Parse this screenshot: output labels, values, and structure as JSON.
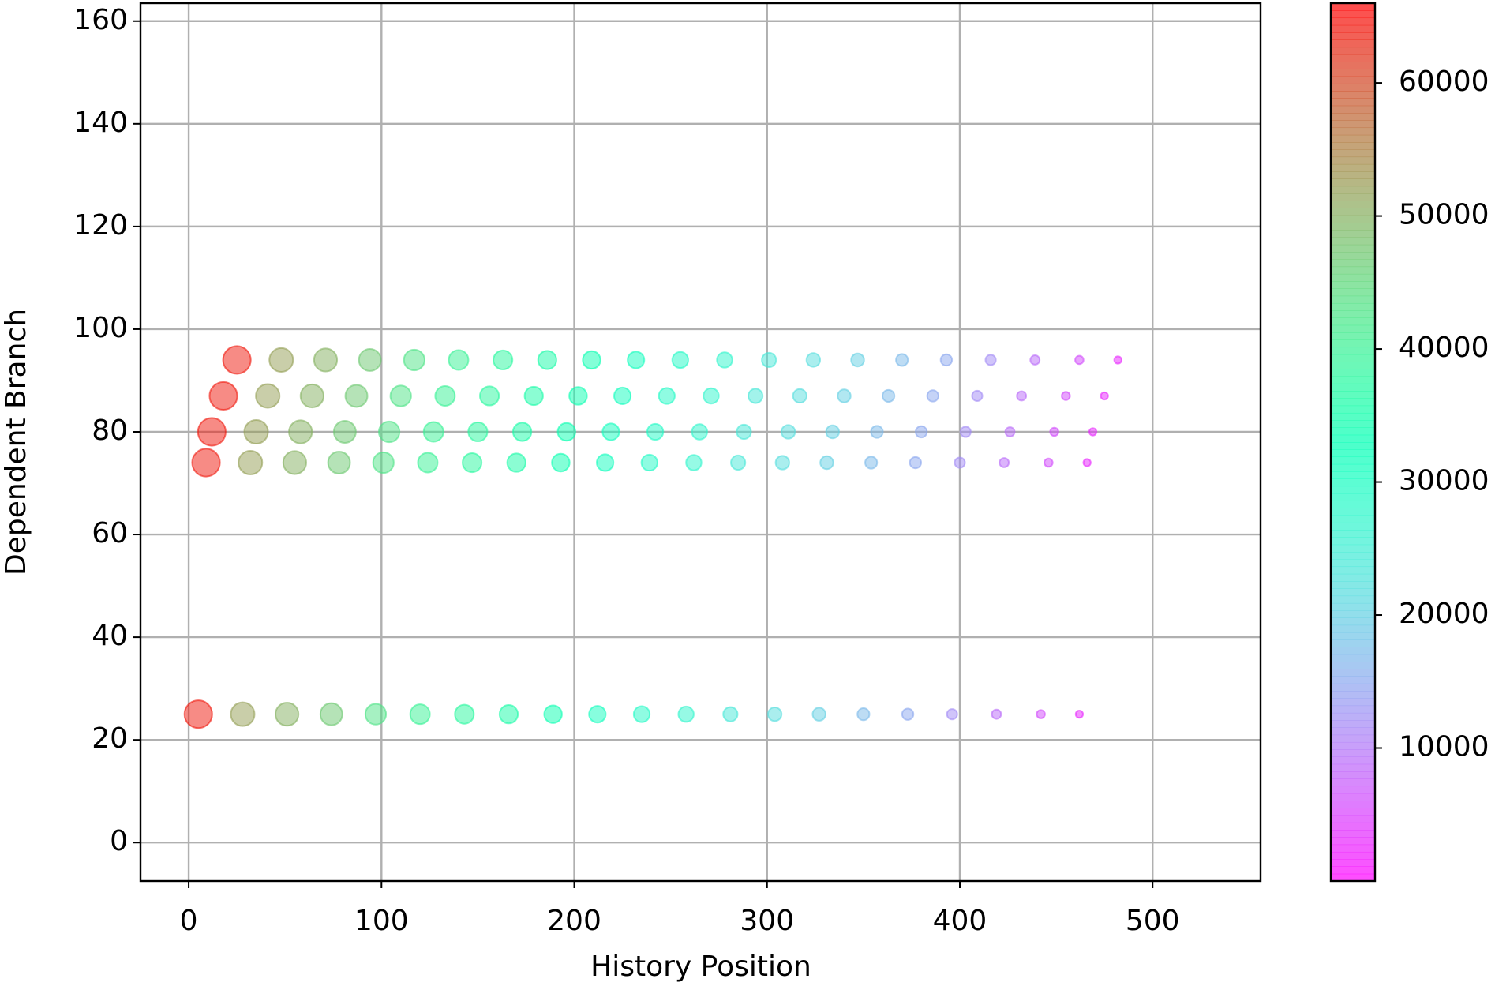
{
  "chart_data": {
    "type": "scatter",
    "xlabel": "History Position",
    "ylabel": "Dependent Branch",
    "xlim": [
      -25,
      556
    ],
    "ylim": [
      -7.5,
      163.5
    ],
    "xticks": [
      0,
      100,
      200,
      300,
      400,
      500
    ],
    "yticks": [
      0,
      20,
      40,
      60,
      80,
      100,
      120,
      140,
      160
    ],
    "grid": true,
    "colormap": "rainbow",
    "clim": [
      0,
      66000
    ],
    "cticks": [
      10000,
      20000,
      30000,
      40000,
      50000,
      60000
    ],
    "x": [
      25,
      18,
      12,
      9,
      5,
      48,
      41,
      35,
      32,
      28,
      71,
      64,
      58,
      55,
      51,
      94,
      87,
      81,
      78,
      74,
      117,
      110,
      104,
      101,
      97,
      140,
      133,
      127,
      124,
      120,
      163,
      156,
      150,
      147,
      143,
      186,
      179,
      173,
      170,
      166,
      209,
      202,
      196,
      193,
      189,
      232,
      225,
      219,
      216,
      212,
      255,
      248,
      242,
      239,
      235,
      278,
      271,
      265,
      262,
      258,
      301,
      294,
      288,
      285,
      281,
      324,
      317,
      311,
      308,
      304,
      347,
      340,
      334,
      331,
      327,
      370,
      363,
      357,
      354,
      350,
      393,
      386,
      380,
      377,
      373,
      416,
      409,
      403,
      400,
      396,
      439,
      432,
      426,
      423,
      419,
      462,
      455,
      449,
      446,
      442,
      482,
      475,
      469,
      466,
      462
    ],
    "y": [
      94,
      87,
      80,
      74,
      25,
      94,
      87,
      80,
      74,
      25,
      94,
      87,
      80,
      74,
      25,
      94,
      87,
      80,
      74,
      25,
      94,
      87,
      80,
      74,
      25,
      94,
      87,
      80,
      74,
      25,
      94,
      87,
      80,
      74,
      25,
      94,
      87,
      80,
      74,
      25,
      94,
      87,
      80,
      74,
      25,
      94,
      87,
      80,
      74,
      25,
      94,
      87,
      80,
      74,
      25,
      94,
      87,
      80,
      74,
      25,
      94,
      87,
      80,
      74,
      25,
      94,
      87,
      80,
      74,
      25,
      94,
      87,
      80,
      74,
      25,
      94,
      87,
      80,
      74,
      25,
      94,
      87,
      80,
      74,
      25,
      94,
      87,
      80,
      74,
      25,
      94,
      87,
      80,
      74,
      25,
      94,
      87,
      80,
      74,
      25,
      94,
      87,
      80,
      74,
      25
    ],
    "c": [
      64000,
      64000,
      64000,
      64000,
      64000,
      52000,
      52000,
      52000,
      52000,
      52000,
      50000,
      50000,
      50000,
      50000,
      50000,
      47000,
      47000,
      47000,
      47000,
      47000,
      43000,
      43000,
      43000,
      43000,
      43000,
      40000,
      40000,
      40000,
      40000,
      40000,
      38000,
      38000,
      38000,
      38000,
      38000,
      36000,
      36000,
      36000,
      36000,
      36000,
      34000,
      34000,
      34000,
      34000,
      34000,
      31000,
      31000,
      31000,
      31000,
      31000,
      29000,
      29000,
      29000,
      29000,
      29000,
      27000,
      27000,
      27000,
      27000,
      27000,
      24000,
      24000,
      24000,
      24000,
      24000,
      22000,
      22000,
      22000,
      22000,
      22000,
      20000,
      20000,
      20000,
      20000,
      20000,
      17000,
      17000,
      17000,
      17000,
      17000,
      15000,
      15000,
      15000,
      15000,
      15000,
      12000,
      12000,
      12000,
      12000,
      12000,
      9000,
      9000,
      9000,
      9000,
      9000,
      6000,
      6000,
      6000,
      6000,
      6000,
      3000,
      3000,
      3000,
      3000,
      3000
    ]
  }
}
